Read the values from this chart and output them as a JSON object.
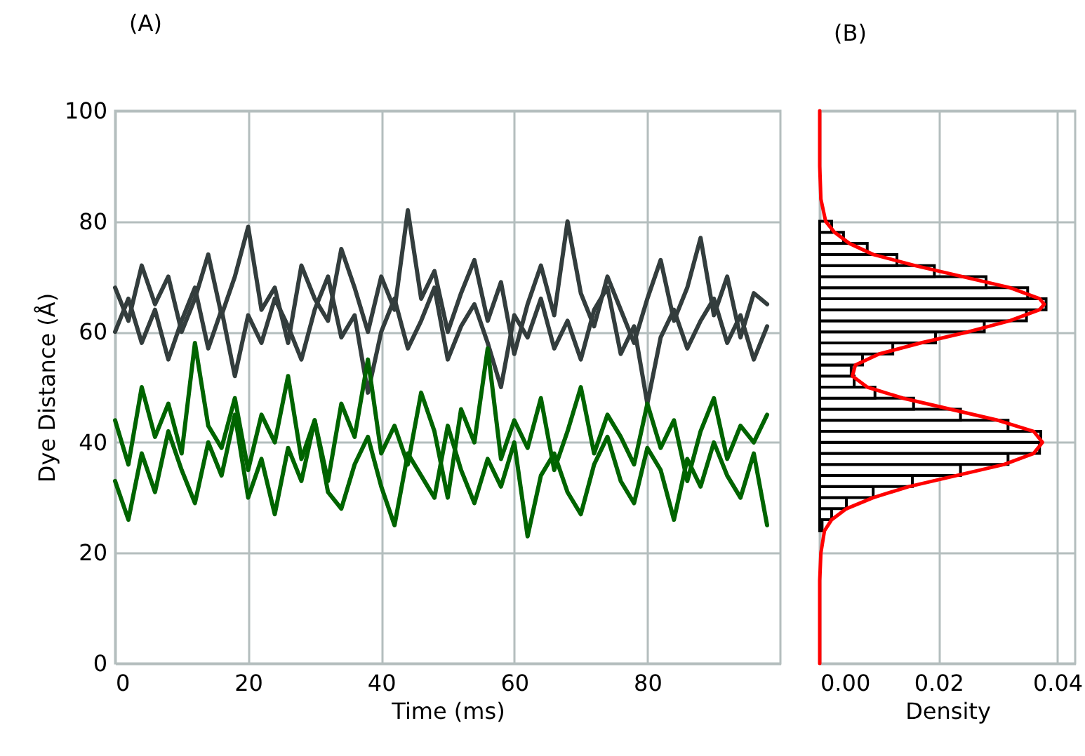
{
  "chart_data": [
    {
      "type": "line",
      "title": "(A)",
      "xlabel": "Time (ms)",
      "ylabel": "Dye Distance (Å)",
      "xlim": [
        0,
        100
      ],
      "xticks": [
        0,
        20,
        40,
        60,
        80
      ],
      "ylim": [
        0,
        100
      ],
      "yticks": [
        0,
        20,
        40,
        60,
        80,
        100
      ],
      "grid": true,
      "x": [
        0,
        2,
        4,
        6,
        8,
        10,
        12,
        14,
        16,
        18,
        20,
        22,
        24,
        26,
        28,
        30,
        32,
        34,
        36,
        38,
        40,
        42,
        44,
        46,
        48,
        50,
        52,
        54,
        56,
        58,
        60,
        62,
        64,
        66,
        68,
        70,
        72,
        74,
        76,
        78,
        80,
        82,
        84,
        86,
        88,
        90,
        92,
        94,
        96,
        98
      ],
      "series": [
        {
          "color": "#333d3d",
          "values": [
            68,
            62,
            72,
            65,
            70,
            60,
            66,
            74,
            63,
            70,
            79,
            64,
            68,
            58,
            72,
            66,
            62,
            75,
            68,
            60,
            70,
            64,
            82,
            66,
            71,
            60,
            67,
            73,
            62,
            69,
            56,
            65,
            72,
            63,
            80,
            67,
            61,
            70,
            64,
            58,
            66,
            73,
            62,
            68,
            77,
            63,
            70,
            59,
            67,
            65
          ]
        },
        {
          "color": "#333d3d",
          "values": [
            60,
            66,
            58,
            64,
            55,
            62,
            68,
            57,
            64,
            52,
            63,
            58,
            66,
            61,
            55,
            64,
            70,
            59,
            63,
            49,
            60,
            66,
            57,
            62,
            68,
            55,
            61,
            65,
            58,
            50,
            63,
            59,
            66,
            57,
            62,
            55,
            64,
            68,
            56,
            61,
            47,
            59,
            64,
            57,
            62,
            66,
            58,
            63,
            55,
            61
          ]
        },
        {
          "color": "#006400",
          "values": [
            44,
            36,
            50,
            41,
            47,
            38,
            58,
            43,
            39,
            48,
            35,
            45,
            40,
            52,
            37,
            44,
            33,
            47,
            41,
            55,
            38,
            43,
            36,
            49,
            42,
            30,
            46,
            40,
            57,
            37,
            44,
            39,
            48,
            35,
            42,
            50,
            38,
            45,
            41,
            36,
            47,
            39,
            44,
            33,
            42,
            48,
            37,
            43,
            40,
            45
          ]
        },
        {
          "color": "#006400",
          "values": [
            33,
            26,
            38,
            31,
            42,
            35,
            29,
            40,
            34,
            45,
            30,
            37,
            27,
            39,
            33,
            44,
            31,
            28,
            36,
            41,
            32,
            25,
            38,
            34,
            30,
            43,
            35,
            29,
            37,
            32,
            40,
            23,
            34,
            38,
            31,
            27,
            36,
            41,
            33,
            29,
            39,
            35,
            26,
            37,
            32,
            40,
            34,
            30,
            38,
            25
          ]
        }
      ]
    },
    {
      "type": "histogram",
      "title": "(B)",
      "xlabel": "Density",
      "orientation": "horizontal",
      "xlim": [
        0,
        0.043
      ],
      "xticks": [
        {
          "value": 0,
          "label": "0.00"
        },
        {
          "value": 0.02,
          "label": "0.02"
        },
        {
          "value": 0.04,
          "label": "0.04"
        }
      ],
      "ylim": [
        0,
        100
      ],
      "yticks": [
        0,
        20,
        40,
        60,
        80,
        100
      ],
      "grid": true,
      "tick_labels": "x",
      "series": [
        {
          "type": "histogram",
          "color": "#ffffff",
          "bins": [
            24,
            26,
            28,
            30,
            32,
            34,
            36,
            38,
            40,
            42,
            44,
            46,
            48,
            50,
            52,
            54,
            56,
            58,
            60,
            62,
            64,
            66,
            68,
            70,
            72,
            74,
            76,
            78,
            80
          ],
          "values": [
            0.0004,
            0.002,
            0.0045,
            0.009,
            0.0156,
            0.0237,
            0.0317,
            0.037,
            0.0372,
            0.0317,
            0.0237,
            0.0158,
            0.0093,
            0.0058,
            0.0053,
            0.0072,
            0.0123,
            0.0195,
            0.0277,
            0.0348,
            0.0381,
            0.035,
            0.028,
            0.0193,
            0.013,
            0.008,
            0.004,
            0.002
          ]
        },
        {
          "type": "line",
          "color": "#ff0000",
          "x": [
            0,
            15,
            20,
            24,
            26,
            28,
            30,
            32,
            34,
            36,
            38,
            40,
            42,
            44,
            46,
            48,
            50,
            52,
            54,
            56,
            58,
            60,
            62,
            64,
            65,
            66,
            68,
            70,
            72,
            74,
            76,
            78,
            80,
            84,
            90,
            100
          ],
          "values": [
            0,
            0,
            0.0002,
            0.0008,
            0.002,
            0.0045,
            0.009,
            0.015,
            0.023,
            0.031,
            0.036,
            0.0375,
            0.036,
            0.03,
            0.022,
            0.014,
            0.008,
            0.0055,
            0.006,
            0.01,
            0.017,
            0.025,
            0.032,
            0.037,
            0.0378,
            0.037,
            0.032,
            0.024,
            0.016,
            0.009,
            0.005,
            0.0025,
            0.001,
            0.0002,
            0,
            0
          ]
        }
      ]
    }
  ]
}
